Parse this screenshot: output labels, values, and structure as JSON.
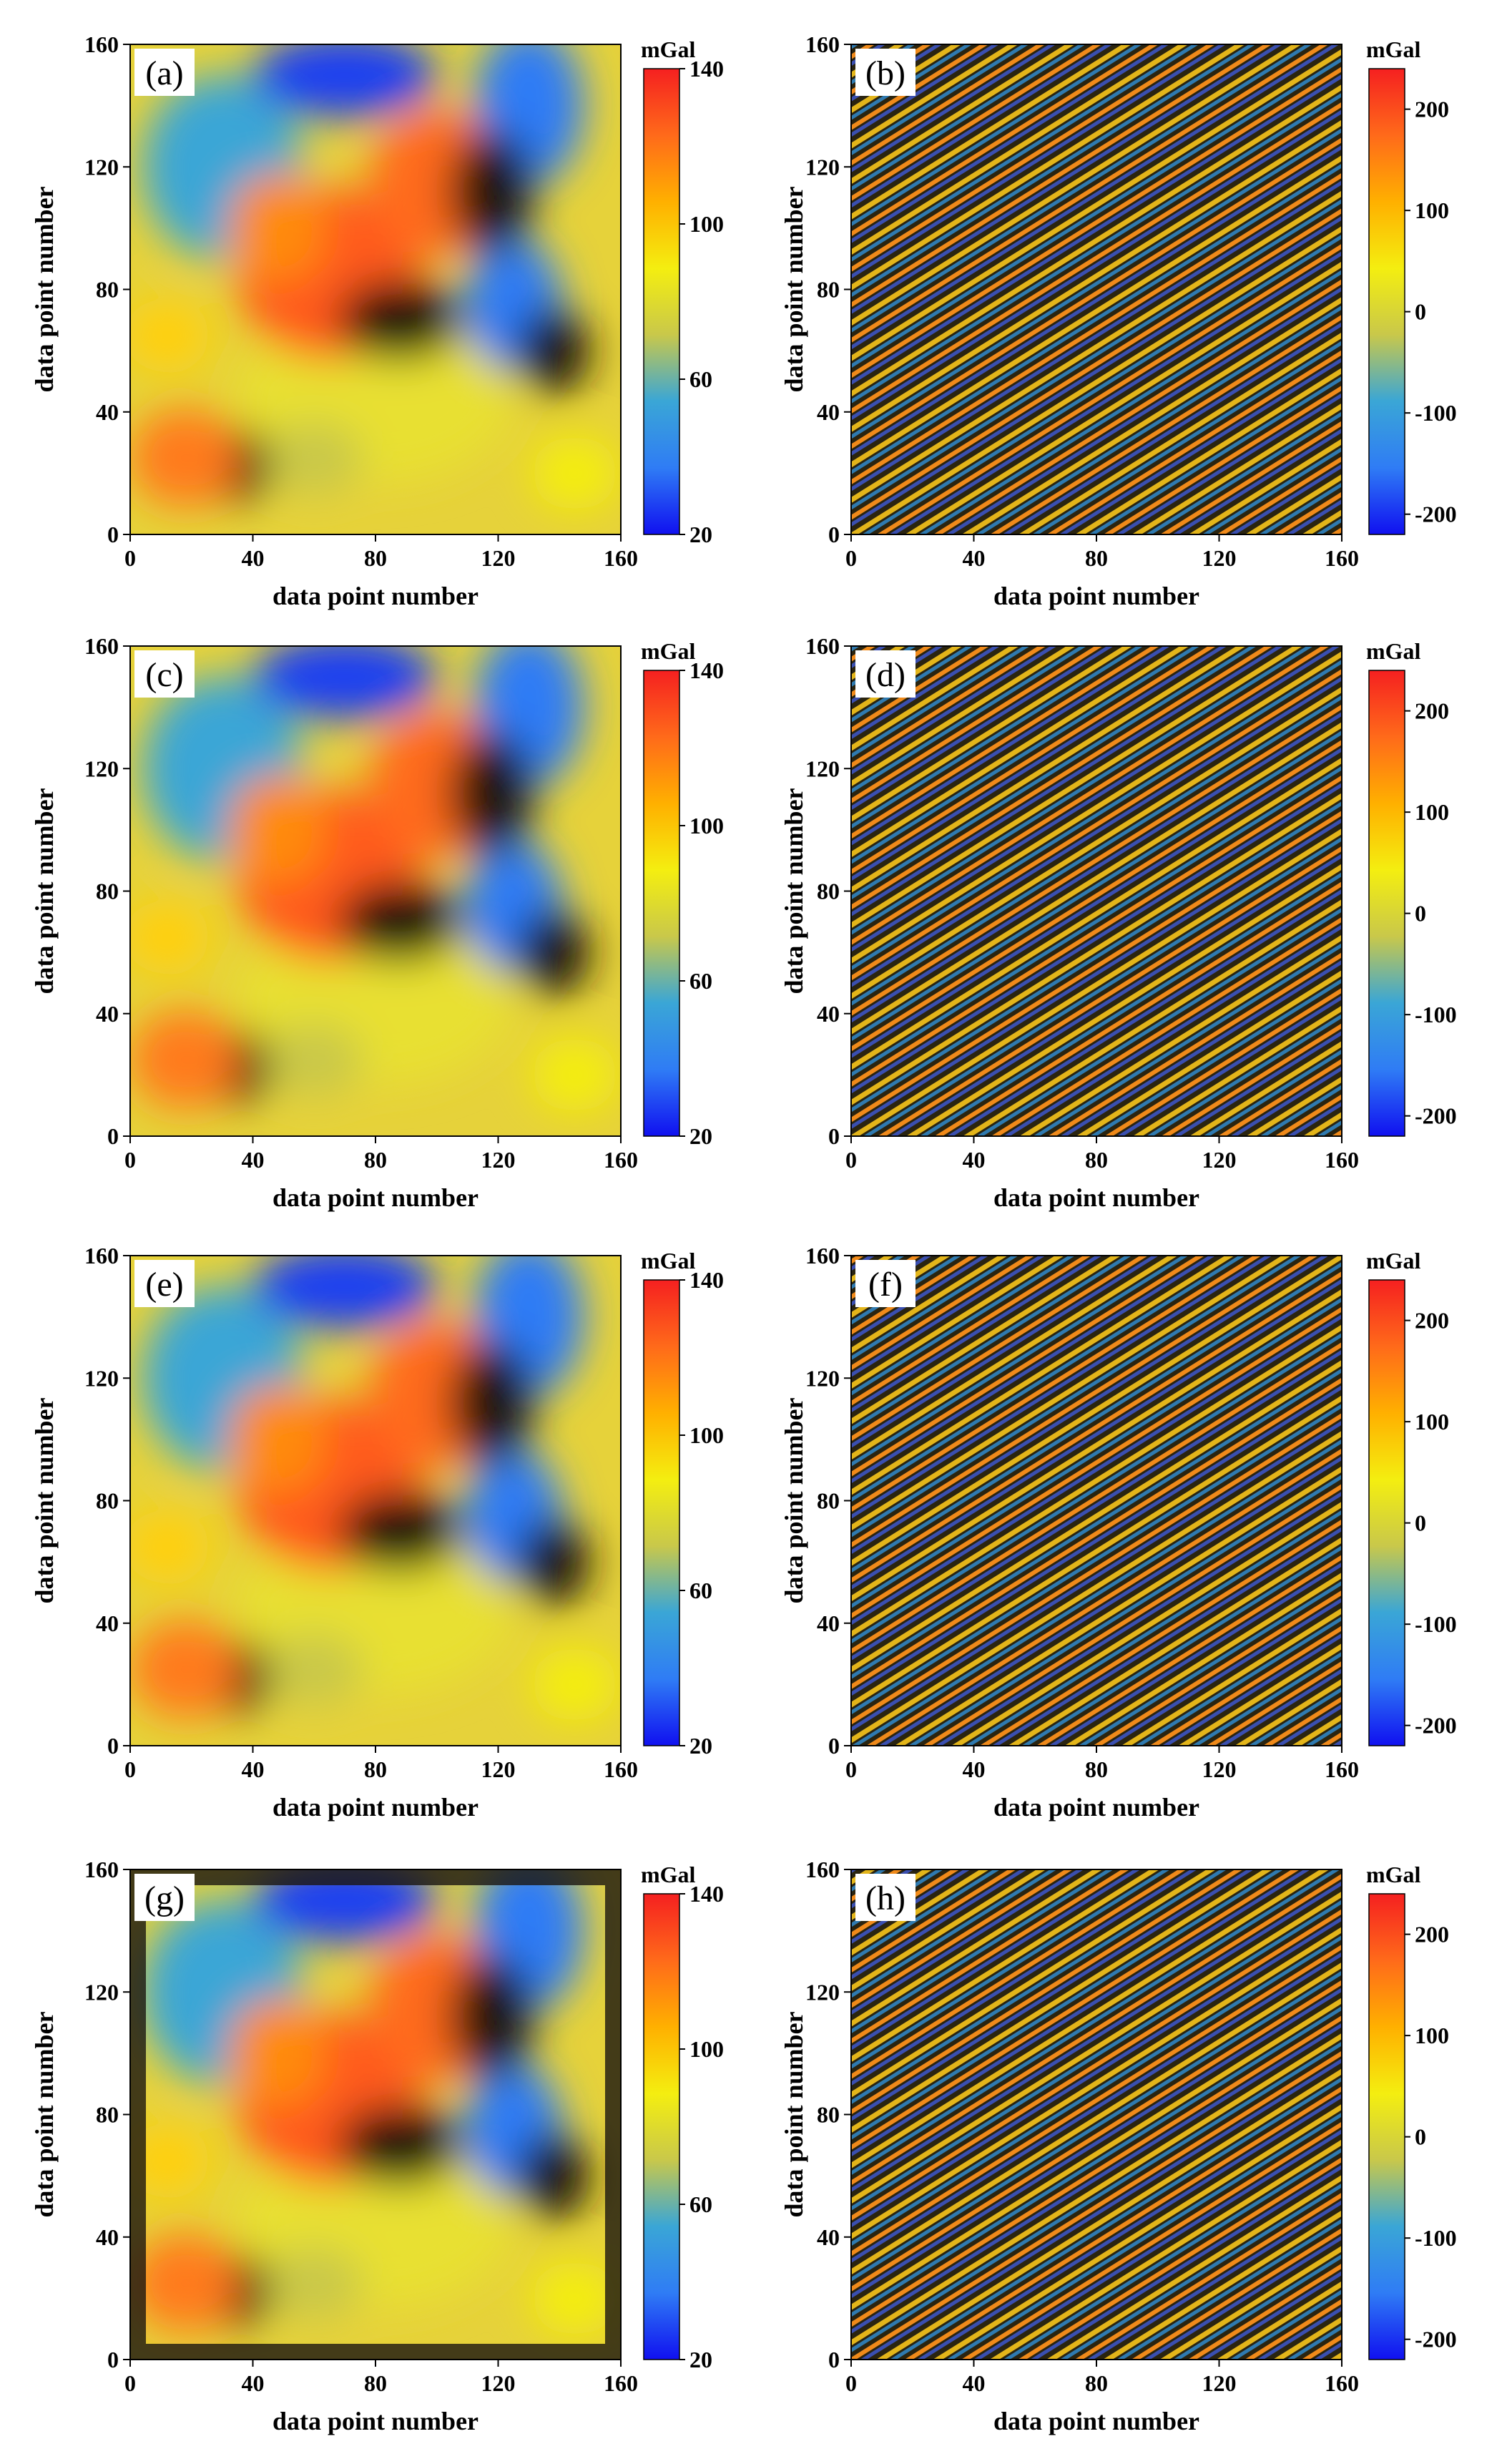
{
  "chart_data": [
    {
      "panel": "(a)",
      "type": "heatmap",
      "pattern": "smooth",
      "xlabel": "data point number",
      "ylabel": "data point number",
      "xlim": [
        0,
        160
      ],
      "ylim": [
        0,
        160
      ],
      "xticks": [
        0,
        40,
        80,
        120,
        160
      ],
      "yticks": [
        0,
        40,
        80,
        120,
        160
      ],
      "colorbar": {
        "unit": "mGal",
        "range": [
          20,
          140
        ],
        "ticks": [
          20,
          60,
          100,
          140
        ]
      }
    },
    {
      "panel": "(b)",
      "type": "heatmap",
      "pattern": "striped",
      "xlabel": "data point number",
      "ylabel": "data point number",
      "xlim": [
        0,
        160
      ],
      "ylim": [
        0,
        160
      ],
      "xticks": [
        0,
        40,
        80,
        120,
        160
      ],
      "yticks": [
        0,
        40,
        80,
        120,
        160
      ],
      "colorbar": {
        "unit": "mGal",
        "range": [
          -220,
          240
        ],
        "ticks": [
          -200,
          -100,
          0,
          100,
          200
        ]
      }
    },
    {
      "panel": "(c)",
      "type": "heatmap",
      "pattern": "smooth",
      "xlabel": "data point number",
      "ylabel": "data point number",
      "xlim": [
        0,
        160
      ],
      "ylim": [
        0,
        160
      ],
      "xticks": [
        0,
        40,
        80,
        120,
        160
      ],
      "yticks": [
        0,
        40,
        80,
        120,
        160
      ],
      "colorbar": {
        "unit": "mGal",
        "range": [
          20,
          140
        ],
        "ticks": [
          20,
          60,
          100,
          140
        ]
      }
    },
    {
      "panel": "(d)",
      "type": "heatmap",
      "pattern": "striped",
      "xlabel": "data point number",
      "ylabel": "data point number",
      "xlim": [
        0,
        160
      ],
      "ylim": [
        0,
        160
      ],
      "xticks": [
        0,
        40,
        80,
        120,
        160
      ],
      "yticks": [
        0,
        40,
        80,
        120,
        160
      ],
      "colorbar": {
        "unit": "mGal",
        "range": [
          -220,
          240
        ],
        "ticks": [
          -200,
          -100,
          0,
          100,
          200
        ]
      }
    },
    {
      "panel": "(e)",
      "type": "heatmap",
      "pattern": "smooth",
      "xlabel": "data point number",
      "ylabel": "data point number",
      "xlim": [
        0,
        160
      ],
      "ylim": [
        0,
        160
      ],
      "xticks": [
        0,
        40,
        80,
        120,
        160
      ],
      "yticks": [
        0,
        40,
        80,
        120,
        160
      ],
      "colorbar": {
        "unit": "mGal",
        "range": [
          20,
          140
        ],
        "ticks": [
          20,
          60,
          100,
          140
        ]
      }
    },
    {
      "panel": "(f)",
      "type": "heatmap",
      "pattern": "striped",
      "xlabel": "data point number",
      "ylabel": "data point number",
      "xlim": [
        0,
        160
      ],
      "ylim": [
        0,
        160
      ],
      "xticks": [
        0,
        40,
        80,
        120,
        160
      ],
      "yticks": [
        0,
        40,
        80,
        120,
        160
      ],
      "colorbar": {
        "unit": "mGal",
        "range": [
          -220,
          240
        ],
        "ticks": [
          -200,
          -100,
          0,
          100,
          200
        ]
      }
    },
    {
      "panel": "(g)",
      "type": "heatmap",
      "pattern": "smooth-artifacts",
      "xlabel": "data point number",
      "ylabel": "data point number",
      "xlim": [
        0,
        160
      ],
      "ylim": [
        0,
        160
      ],
      "xticks": [
        0,
        40,
        80,
        120,
        160
      ],
      "yticks": [
        0,
        40,
        80,
        120,
        160
      ],
      "colorbar": {
        "unit": "mGal",
        "range": [
          20,
          140
        ],
        "ticks": [
          20,
          60,
          100,
          140
        ]
      }
    },
    {
      "panel": "(h)",
      "type": "heatmap",
      "pattern": "striped",
      "xlabel": "data point number",
      "ylabel": "data point number",
      "xlim": [
        0,
        160
      ],
      "ylim": [
        0,
        160
      ],
      "xticks": [
        0,
        40,
        80,
        120,
        160
      ],
      "yticks": [
        0,
        40,
        80,
        120,
        160
      ],
      "colorbar": {
        "unit": "mGal",
        "range": [
          -220,
          240
        ],
        "ticks": [
          -200,
          -100,
          0,
          100,
          200
        ]
      }
    }
  ],
  "colormap": [
    "#1010f0",
    "#2f7cf5",
    "#3aa6d6",
    "#c9c84a",
    "#f4ee10",
    "#ffb000",
    "#ff6a1a",
    "#f52020"
  ]
}
